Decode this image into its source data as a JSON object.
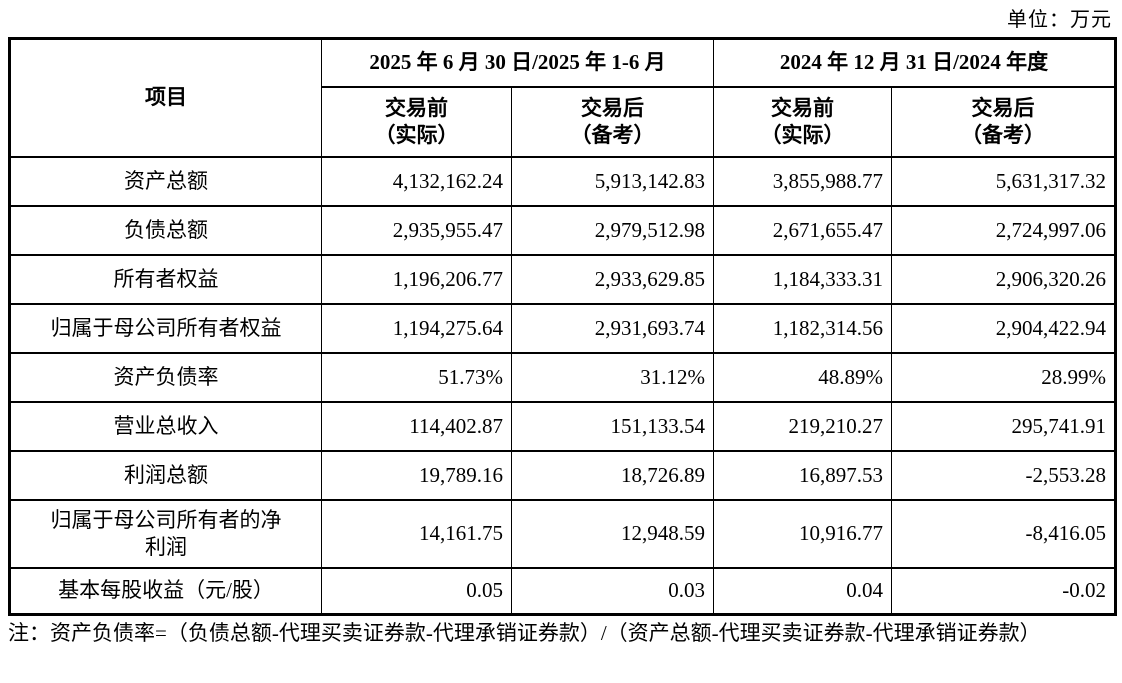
{
  "unit_label": "单位：万元",
  "colors": {
    "text": "#000000",
    "background": "#ffffff",
    "border": "#000000"
  },
  "table": {
    "item_header": "项目",
    "period_headers": [
      "2025 年 6 月 30 日/2025 年 1-6 月",
      "2024 年 12 月 31 日/2024 年度"
    ],
    "sub_headers": [
      "交易前\n（实际）",
      "交易后\n（备考）",
      "交易前\n（实际）",
      "交易后\n（备考）"
    ],
    "rows": [
      {
        "label": "资产总额",
        "values": [
          "4,132,162.24",
          "5,913,142.83",
          "3,855,988.77",
          "5,631,317.32"
        ]
      },
      {
        "label": "负债总额",
        "values": [
          "2,935,955.47",
          "2,979,512.98",
          "2,671,655.47",
          "2,724,997.06"
        ]
      },
      {
        "label": "所有者权益",
        "values": [
          "1,196,206.77",
          "2,933,629.85",
          "1,184,333.31",
          "2,906,320.26"
        ]
      },
      {
        "label": "归属于母公司所有者权益",
        "values": [
          "1,194,275.64",
          "2,931,693.74",
          "1,182,314.56",
          "2,904,422.94"
        ]
      },
      {
        "label": "资产负债率",
        "values": [
          "51.73%",
          "31.12%",
          "48.89%",
          "28.99%"
        ]
      },
      {
        "label": "营业总收入",
        "values": [
          "114,402.87",
          "151,133.54",
          "219,210.27",
          "295,741.91"
        ]
      },
      {
        "label": "利润总额",
        "values": [
          "19,789.16",
          "18,726.89",
          "16,897.53",
          "-2,553.28"
        ]
      },
      {
        "label": "归属于母公司所有者的净\n利润",
        "values": [
          "14,161.75",
          "12,948.59",
          "10,916.77",
          "-8,416.05"
        ]
      },
      {
        "label": "基本每股收益（元/股）",
        "values": [
          "0.05",
          "0.03",
          "0.04",
          "-0.02"
        ]
      }
    ]
  },
  "note": "注：资产负债率=（负债总额-代理买卖证券款-代理承销证券款）/（资产总额-代理买卖证券款-代理承销证券款）"
}
